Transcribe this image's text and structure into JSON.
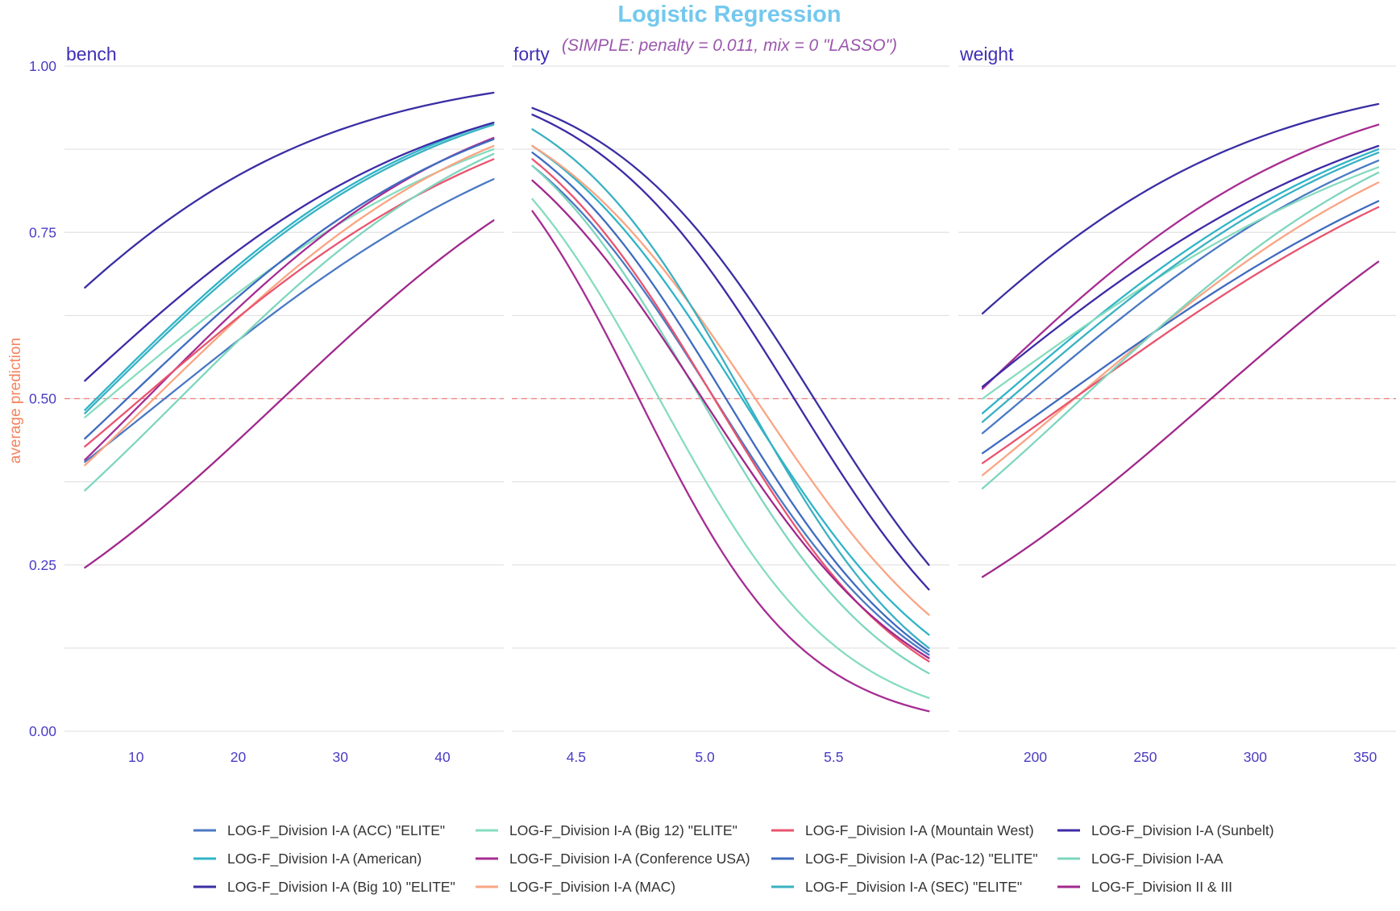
{
  "chart_data": {
    "type": "line",
    "title": "Logistic Regression",
    "subtitle": "(SIMPLE: penalty = 0.011, mix = 0 \"LASSO\")",
    "ylabel": "average prediction",
    "ylim": [
      0,
      1
    ],
    "yticks": [
      0,
      0.25,
      0.5,
      0.75,
      1
    ],
    "ytick_labels": [
      "0.00",
      "0.25",
      "0.50",
      "0.75",
      "1.00"
    ],
    "reference_line": {
      "y": 0.5,
      "style": "dashed",
      "color": "#f08080"
    },
    "legend_position": "bottom",
    "series": [
      {
        "name": "LOG-F_Division I-A (ACC) \"ELITE\"",
        "color": "#4a79c4"
      },
      {
        "name": "LOG-F_Division I-A (American)",
        "color": "#2fb4c8"
      },
      {
        "name": "LOG-F_Division I-A (Big 10) \"ELITE\"",
        "color": "#3a2ea3"
      },
      {
        "name": "LOG-F_Division I-A (Big 12) \"ELITE\"",
        "color": "#86dcbf"
      },
      {
        "name": "LOG-F_Division I-A (Conference USA)",
        "color": "#a62d93"
      },
      {
        "name": "LOG-F_Division I-A (MAC)",
        "color": "#f9a584"
      },
      {
        "name": "LOG-F_Division I-A (Mountain West)",
        "color": "#e9546f"
      },
      {
        "name": "LOG-F_Division I-A (Pac-12) \"ELITE\"",
        "color": "#3f6bc0"
      },
      {
        "name": "LOG-F_Division I-A (SEC) \"ELITE\"",
        "color": "#3ab1c2"
      },
      {
        "name": "LOG-F_Division I-A (Sunbelt)",
        "color": "#3c2ba6"
      },
      {
        "name": "LOG-F_Division I-AA",
        "color": "#7ed6be"
      },
      {
        "name": "LOG-F_Division II & III",
        "color": "#a0288c"
      }
    ],
    "panels": [
      {
        "label": "bench",
        "xlim": [
          3,
          46
        ],
        "xticks": [
          10,
          20,
          30,
          40
        ],
        "xtick_labels": [
          "10",
          "20",
          "30",
          "40"
        ],
        "x": [
          5,
          45
        ],
        "curves": [
          {
            "series": 0,
            "values": [
              0.405,
              0.83
            ]
          },
          {
            "series": 1,
            "values": [
              0.483,
              0.915
            ]
          },
          {
            "series": 2,
            "values": [
              0.667,
              0.96
            ]
          },
          {
            "series": 3,
            "values": [
              0.472,
              0.875
            ]
          },
          {
            "series": 4,
            "values": [
              0.408,
              0.892
            ]
          },
          {
            "series": 5,
            "values": [
              0.4,
              0.88
            ]
          },
          {
            "series": 6,
            "values": [
              0.428,
              0.86
            ]
          },
          {
            "series": 7,
            "values": [
              0.44,
              0.89
            ]
          },
          {
            "series": 8,
            "values": [
              0.478,
              0.912
            ]
          },
          {
            "series": 9,
            "values": [
              0.527,
              0.915
            ]
          },
          {
            "series": 10,
            "values": [
              0.362,
              0.868
            ]
          },
          {
            "series": 11,
            "values": [
              0.246,
              0.768
            ]
          }
        ]
      },
      {
        "label": "forty",
        "xlim": [
          4.25,
          5.95
        ],
        "xticks": [
          4.5,
          5.0,
          5.5
        ],
        "xtick_labels": [
          "4.5",
          "5.0",
          "5.5"
        ],
        "x": [
          4.33,
          5.87
        ],
        "curves": [
          {
            "series": 0,
            "values": [
              0.85,
              0.115
            ]
          },
          {
            "series": 1,
            "values": [
              0.88,
              0.145
            ]
          },
          {
            "series": 2,
            "values": [
              0.937,
              0.25
            ]
          },
          {
            "series": 3,
            "values": [
              0.8,
              0.05
            ]
          },
          {
            "series": 4,
            "values": [
              0.782,
              0.03
            ]
          },
          {
            "series": 5,
            "values": [
              0.88,
              0.175
            ]
          },
          {
            "series": 6,
            "values": [
              0.86,
              0.105
            ]
          },
          {
            "series": 7,
            "values": [
              0.87,
              0.12
            ]
          },
          {
            "series": 8,
            "values": [
              0.905,
              0.125
            ]
          },
          {
            "series": 9,
            "values": [
              0.927,
              0.213
            ]
          },
          {
            "series": 10,
            "values": [
              0.85,
              0.087
            ]
          },
          {
            "series": 11,
            "values": [
              0.828,
              0.11
            ]
          }
        ]
      },
      {
        "label": "weight",
        "xlim": [
          165,
          364
        ],
        "xticks": [
          200,
          250,
          300,
          350
        ],
        "xtick_labels": [
          "200",
          "250",
          "300",
          "350"
        ],
        "x": [
          176,
          356
        ],
        "curves": [
          {
            "series": 0,
            "values": [
              0.448,
              0.858
            ]
          },
          {
            "series": 1,
            "values": [
              0.478,
              0.875
            ]
          },
          {
            "series": 2,
            "values": [
              0.628,
              0.943
            ]
          },
          {
            "series": 3,
            "values": [
              0.5,
              0.848
            ]
          },
          {
            "series": 4,
            "values": [
              0.515,
              0.912
            ]
          },
          {
            "series": 5,
            "values": [
              0.385,
              0.825
            ]
          },
          {
            "series": 6,
            "values": [
              0.403,
              0.788
            ]
          },
          {
            "series": 7,
            "values": [
              0.418,
              0.797
            ]
          },
          {
            "series": 8,
            "values": [
              0.465,
              0.87
            ]
          },
          {
            "series": 9,
            "values": [
              0.518,
              0.88
            ]
          },
          {
            "series": 10,
            "values": [
              0.365,
              0.84
            ]
          },
          {
            "series": 11,
            "values": [
              0.232,
              0.706
            ]
          }
        ]
      }
    ]
  }
}
